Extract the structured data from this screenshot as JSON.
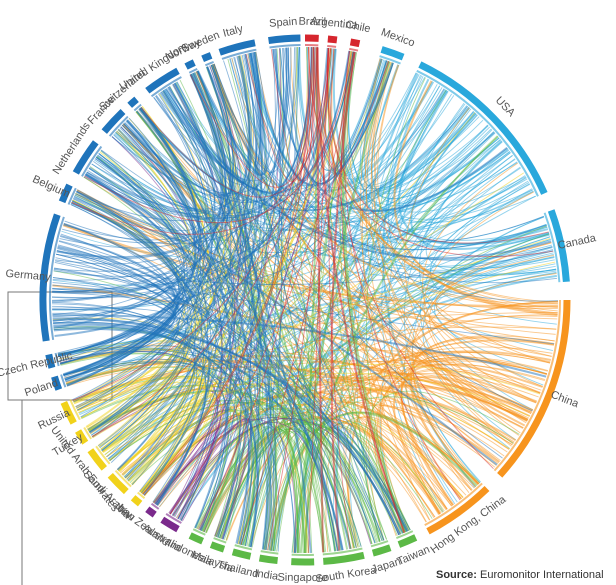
{
  "nodes": [
    {
      "label": "Mexico",
      "color": "#29a8dc"
    },
    {
      "label": "USA",
      "color": "#29a8dc"
    },
    {
      "label": "Canada",
      "color": "#29a8dc"
    },
    {
      "label": "China",
      "color": "#f7941d"
    },
    {
      "label": "Hong Kong, China",
      "color": "#f7941d"
    },
    {
      "label": "Taiwan",
      "color": "#5cb946"
    },
    {
      "label": "Japan",
      "color": "#5cb946"
    },
    {
      "label": "South Korea",
      "color": "#5cb946"
    },
    {
      "label": "Singapore",
      "color": "#5cb946"
    },
    {
      "label": "India",
      "color": "#5cb946"
    },
    {
      "label": "Thailand",
      "color": "#5cb946"
    },
    {
      "label": "Malaysia",
      "color": "#5cb946"
    },
    {
      "label": "Indonesia",
      "color": "#5cb946"
    },
    {
      "label": "Australia",
      "color": "#7b2a8c"
    },
    {
      "label": "New Zealand",
      "color": "#7b2a8c"
    },
    {
      "label": "Iran",
      "color": "#f1d21a"
    },
    {
      "label": "Saudi Arabia",
      "color": "#f1d21a"
    },
    {
      "label": "United Arab Emirates",
      "color": "#f1d21a"
    },
    {
      "label": "Turkey",
      "color": "#f1d21a"
    },
    {
      "label": "Russia",
      "color": "#f1d21a"
    },
    {
      "label": "Poland",
      "color": "#1f74bb"
    },
    {
      "label": "Czech Republic",
      "color": "#1f74bb"
    },
    {
      "label": "Germany",
      "color": "#1f74bb"
    },
    {
      "label": "Belgium",
      "color": "#1f74bb"
    },
    {
      "label": "Netherlands",
      "color": "#1f74bb"
    },
    {
      "label": "France",
      "color": "#1f74bb"
    },
    {
      "label": "Switzerland",
      "color": "#1f74bb"
    },
    {
      "label": "United Kingdom",
      "color": "#1f74bb"
    },
    {
      "label": "Norway",
      "color": "#1f74bb"
    },
    {
      "label": "Sweden",
      "color": "#1f74bb"
    },
    {
      "label": "Italy",
      "color": "#1f74bb"
    },
    {
      "label": "Spain",
      "color": "#1f74bb"
    },
    {
      "label": "Brazil",
      "color": "#d6262e"
    },
    {
      "label": "Argentina",
      "color": "#d6262e"
    },
    {
      "label": "Chile",
      "color": "#d6262e"
    }
  ],
  "source": {
    "label": "Source:",
    "text": "Euromonitor International"
  }
}
